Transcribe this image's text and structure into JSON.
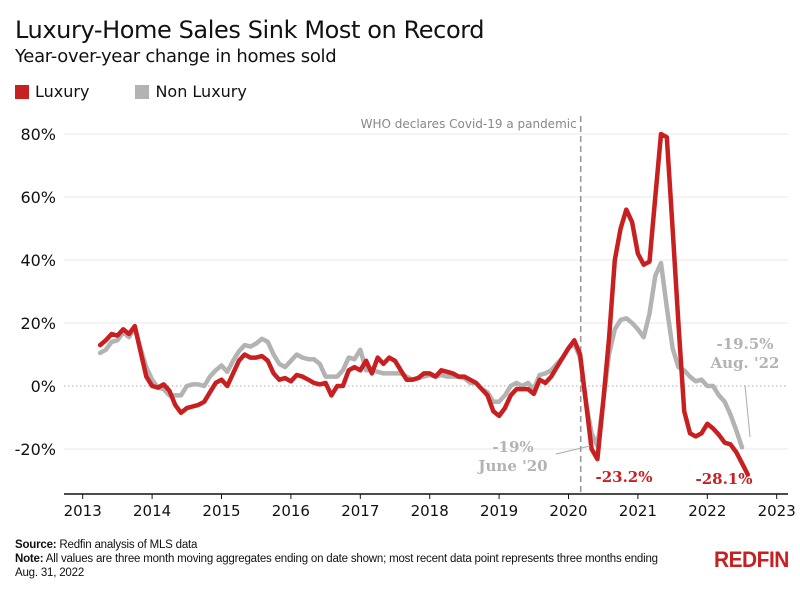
{
  "header": {
    "title": "Luxury-Home Sales Sink Most on Record",
    "subtitle": "Year-over-year change in homes sold"
  },
  "legend": [
    {
      "label": "Luxury",
      "color": "#c82021"
    },
    {
      "label": "Non Luxury",
      "color": "#b3b3b3"
    }
  ],
  "footer": {
    "source_label": "Source:",
    "source_text": "Redfin analysis of MLS data",
    "note_label": "Note:",
    "note_text": "All values are three month moving aggregates ending on date shown; most recent data point represents three months ending Aug. 31, 2022"
  },
  "logo": "REDFIN",
  "chart_data": {
    "type": "line",
    "title": "Luxury-Home Sales Sink Most on Record",
    "subtitle": "Year-over-year change in homes sold",
    "xlabel": "",
    "ylabel": "",
    "xlim": [
      2012.78,
      2023.15
    ],
    "ylim": [
      -34,
      85
    ],
    "yticks": [
      -20,
      0,
      20,
      40,
      60,
      80
    ],
    "ytick_labels": [
      "-20%",
      "0%",
      "20%",
      "40%",
      "60%",
      "80%"
    ],
    "xticks": [
      2013,
      2014,
      2015,
      2016,
      2017,
      2018,
      2019,
      2020,
      2021,
      2022,
      2023
    ],
    "xtick_labels": [
      "2013",
      "2014",
      "2015",
      "2016",
      "2017",
      "2018",
      "2019",
      "2020",
      "2021",
      "2022",
      "2023"
    ],
    "grid": true,
    "legend_position": "top-left",
    "x_start": 2013.25,
    "x_step_months": 1,
    "series": [
      {
        "name": "Luxury",
        "color": "#c82021",
        "values": [
          13,
          14.5,
          16.5,
          16,
          18,
          16.5,
          19,
          11,
          3,
          0,
          -0.5,
          0.5,
          -1.5,
          -6,
          -8.5,
          -7,
          -6.5,
          -6,
          -5,
          -2,
          1,
          2,
          0,
          4,
          8,
          10,
          9,
          9,
          9.5,
          8,
          4,
          2,
          2.5,
          1.5,
          3.5,
          3,
          2,
          1,
          0.5,
          1,
          -3,
          0,
          0,
          5,
          6,
          5,
          8,
          4,
          9,
          7,
          9,
          8,
          5,
          2,
          2,
          2.5,
          4,
          4,
          3,
          5,
          4.5,
          4,
          3,
          3,
          2,
          1,
          -1,
          -3,
          -8,
          -9.5,
          -7,
          -3,
          -1,
          -1,
          -1,
          -2.5,
          2,
          1,
          3,
          6,
          9,
          12,
          14.5,
          10,
          -5,
          -20,
          -23.2,
          -5,
          15,
          40,
          50,
          56,
          52,
          42,
          38.5,
          39.5,
          60,
          80,
          79,
          50,
          20,
          -8,
          -15,
          -16,
          -15,
          -12,
          -13.5,
          -15.5,
          -18,
          -18.5,
          -21,
          -24.5,
          -28.1
        ]
      },
      {
        "name": "Non Luxury",
        "color": "#b3b3b3",
        "values": [
          10.5,
          11.5,
          14,
          14.5,
          17,
          15.5,
          18.5,
          12,
          6,
          2,
          -0.5,
          -1,
          -3,
          -3,
          -3,
          0,
          0.5,
          0.5,
          0,
          3,
          5,
          6.5,
          4.5,
          8,
          11,
          13,
          12.5,
          13.5,
          15,
          14,
          10,
          7,
          6,
          8,
          10,
          9,
          8.5,
          8.5,
          7,
          3,
          3,
          3,
          5,
          9,
          8.5,
          11.5,
          5,
          5,
          4.5,
          4,
          4,
          4,
          4,
          3,
          2,
          2.5,
          3,
          3.5,
          3,
          3.5,
          3,
          3,
          3,
          2.5,
          1,
          1,
          -1,
          -2,
          -5,
          -5,
          -3,
          0,
          1,
          0,
          1,
          -1,
          3.5,
          4,
          5,
          7,
          9,
          12,
          13.5,
          9,
          -5,
          -15,
          -19,
          -5,
          10,
          18,
          21,
          21.5,
          20,
          18,
          15.5,
          23,
          35,
          39,
          25,
          12,
          6,
          5,
          3,
          1.5,
          2,
          0,
          0,
          -3,
          -5,
          -9,
          -14,
          -19.5
        ]
      }
    ],
    "annotations": [
      {
        "text": "WHO declares Covid-19 a pandemic",
        "x": 2020.2,
        "type": "vertical-dashed-line"
      },
      {
        "text": "-19%",
        "text2": "June '20",
        "series": "Non Luxury",
        "x": 2020.42,
        "y": -19
      },
      {
        "text": "-23.2%",
        "series": "Luxury",
        "x": 2020.5,
        "y": -23.2
      },
      {
        "text": "-28.1%",
        "series": "Luxury",
        "x": 2022.67,
        "y": -28.1
      },
      {
        "text": "-19.5%",
        "text2": "Aug. '22",
        "series": "Non Luxury",
        "x": 2022.67,
        "y": -19.5
      }
    ]
  }
}
